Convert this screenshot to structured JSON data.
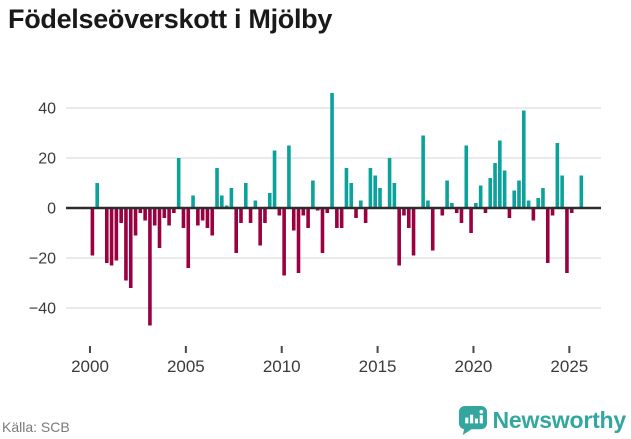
{
  "title": "Födelseöverskott i Mjölby",
  "source": "Källa: SCB",
  "branding": {
    "name": "Newsworthy",
    "icon": "newsworthy-bubble-chart-icon"
  },
  "colors": {
    "positive_bar": "#0ba29b",
    "negative_bar": "#9a0141",
    "zero_line": "#2d2d2d",
    "gridline": "#e4e4e4",
    "axis_text": "#3b3b3b",
    "tick_mark": "#4a4a4a",
    "brand_teal": "#33a79f"
  },
  "chart_data": {
    "type": "bar",
    "title": "Födelseöverskott i Mjölby",
    "frequency": "quarterly",
    "start": "2000-Q1",
    "end": "2025-Q3",
    "values": [
      -19,
      10,
      0,
      -22,
      -23,
      -21,
      -6,
      -29,
      -32,
      -11,
      -2,
      -5,
      -47,
      -7,
      -16,
      -4,
      -7,
      -2,
      20,
      -8,
      -24,
      5,
      -7,
      -5,
      -8,
      -11,
      16,
      5,
      1,
      8,
      -18,
      -6,
      10,
      -6,
      3,
      -15,
      -6,
      6,
      23,
      -3,
      -27,
      25,
      -9,
      -26,
      -3,
      -8,
      11,
      -1,
      -18,
      -2,
      46,
      -8,
      -8,
      16,
      10,
      -4,
      3,
      -6,
      16,
      13,
      8,
      0,
      20,
      10,
      -23,
      -3,
      -8,
      -19,
      0,
      29,
      3,
      -17,
      0,
      -3,
      11,
      2,
      -2,
      -6,
      25,
      -10,
      2,
      9,
      -2,
      12,
      18,
      27,
      15,
      -4,
      7,
      11,
      39,
      3,
      -5,
      4,
      8,
      -22,
      -3,
      26,
      13,
      -26,
      -2,
      0,
      13
    ],
    "x_tick_labels": [
      "2000",
      "2005",
      "2010",
      "2015",
      "2020",
      "2025"
    ],
    "y_tick_labels": [
      "40",
      "20",
      "0",
      "−20",
      "−40"
    ],
    "y_tick_values": [
      40,
      20,
      0,
      -20,
      -40
    ],
    "ylim": [
      -50,
      48
    ],
    "grid": "horizontal",
    "legend": "none"
  }
}
